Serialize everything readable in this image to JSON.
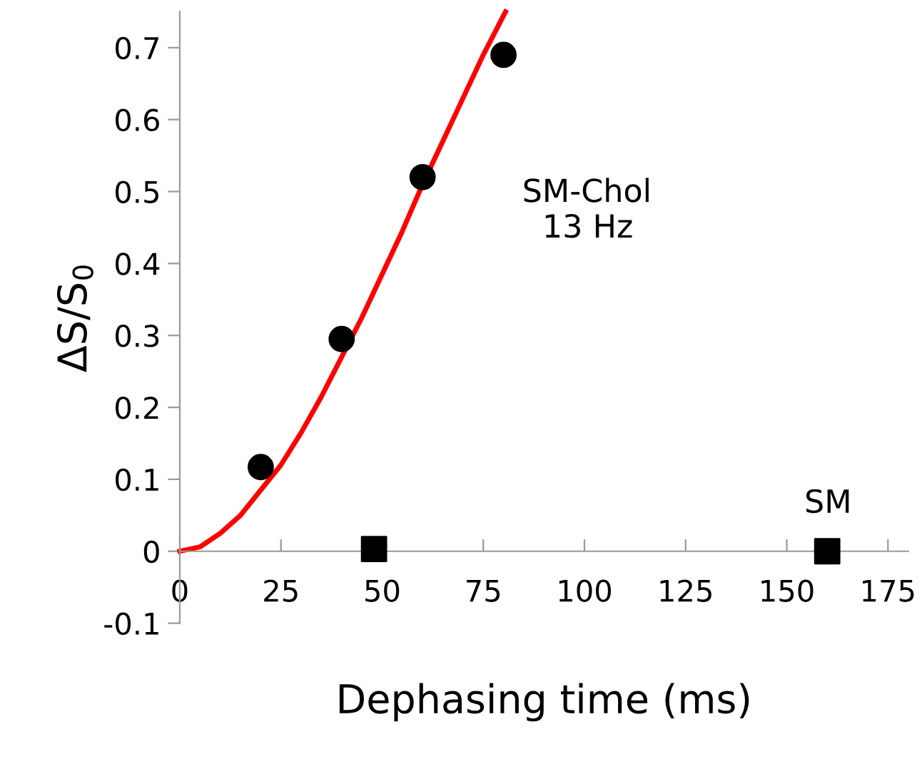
{
  "chart_data": {
    "type": "scatter",
    "xlabel": "Dephasing time (ms)",
    "ylabel": "ΔS/S$_{0}$",
    "xlim": [
      0,
      180
    ],
    "ylim": [
      -0.1,
      0.75
    ],
    "xticks": [
      0,
      25,
      50,
      75,
      100,
      125,
      150,
      175
    ],
    "yticks": [
      -0.1,
      0,
      0.1,
      0.2,
      0.3,
      0.4,
      0.5,
      0.6,
      0.7
    ],
    "grid": false,
    "legend": false,
    "series": [
      {
        "type": "line",
        "color": "#ff0000",
        "marker": "none",
        "line_style": "solid",
        "x": [
          0,
          5,
          10,
          15,
          20,
          25,
          30,
          35,
          40,
          45,
          50,
          55,
          60,
          65,
          70,
          75,
          80.5
        ],
        "values": [
          0,
          0.006,
          0.025,
          0.05,
          0.085,
          0.12,
          0.165,
          0.215,
          0.27,
          0.325,
          0.385,
          0.445,
          0.51,
          0.57,
          0.63,
          0.69,
          0.75
        ]
      },
      {
        "color": "#000000",
        "marker": "circle",
        "x": [
          20,
          40,
          60,
          80
        ],
        "values": [
          0.117,
          0.295,
          0.52,
          0.69
        ]
      },
      {
        "color": "#000000",
        "marker": "square",
        "x": [
          48,
          160
        ],
        "values": [
          0.003,
          0.0
        ]
      }
    ],
    "annotations": [
      "SM-Chol\n  13 Hz",
      "SM"
    ]
  }
}
